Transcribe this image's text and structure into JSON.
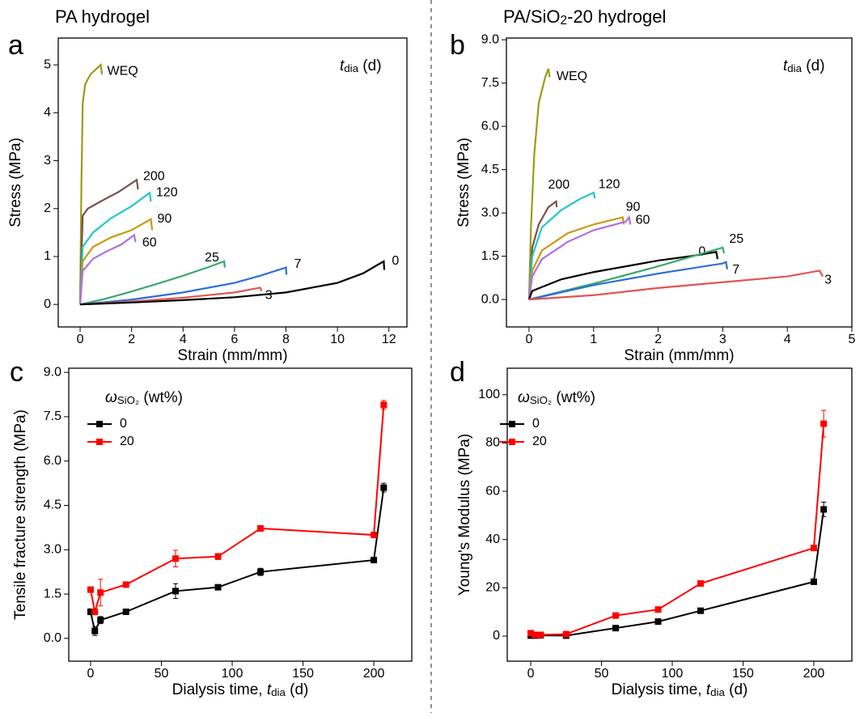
{
  "chart_data": [
    {
      "type": "line",
      "panel_label": "a",
      "title": [
        {
          "text": "PA hydrogel"
        }
      ],
      "legend_title": [
        {
          "text": "t",
          "style": "italic"
        },
        {
          "text": "dia",
          "style": "sub"
        },
        {
          "text": " (d)"
        }
      ],
      "x_label": [
        {
          "text": "Strain (mm/mm)"
        }
      ],
      "y_label": [
        {
          "text": "Stress (MPa)"
        }
      ],
      "xlim": [
        -0.85,
        12.7
      ],
      "ylim": [
        -0.47,
        5.56
      ],
      "xticks": [
        0,
        2,
        4,
        6,
        8,
        10,
        12
      ],
      "yticks": [
        0,
        1,
        2,
        3,
        4,
        5
      ],
      "series": [
        {
          "name": "WEQ",
          "color": "#9b9b19",
          "x": [
            0,
            0.05,
            0.1,
            0.2,
            0.4,
            0.6,
            0.8,
            0.85
          ],
          "values": [
            0,
            2.5,
            4.2,
            4.6,
            4.8,
            4.9,
            5.0,
            4.8
          ]
        },
        {
          "name": "200",
          "color": "#7a4f4f",
          "x": [
            0,
            0.1,
            0.3,
            0.8,
            1.5,
            2.2,
            2.25
          ],
          "values": [
            0,
            1.85,
            2.0,
            2.15,
            2.35,
            2.6,
            2.4
          ]
        },
        {
          "name": "120",
          "color": "#20c8c8",
          "x": [
            0,
            0.1,
            0.5,
            1.2,
            2.0,
            2.7,
            2.75
          ],
          "values": [
            0,
            1.2,
            1.5,
            1.8,
            2.05,
            2.33,
            2.15
          ]
        },
        {
          "name": "90",
          "color": "#c89a10",
          "x": [
            0,
            0.1,
            0.5,
            1.2,
            2.0,
            2.75,
            2.8
          ],
          "values": [
            0,
            0.9,
            1.2,
            1.4,
            1.55,
            1.78,
            1.55
          ]
        },
        {
          "name": "60",
          "color": "#b070e0",
          "x": [
            0,
            0.1,
            0.5,
            1.0,
            1.6,
            2.1,
            2.15
          ],
          "values": [
            0,
            0.7,
            0.95,
            1.1,
            1.25,
            1.45,
            1.3
          ]
        },
        {
          "name": "25",
          "color": "#3aa86a",
          "x": [
            0,
            1,
            2,
            3,
            4,
            5,
            5.6,
            5.62
          ],
          "values": [
            0,
            0.12,
            0.27,
            0.43,
            0.6,
            0.78,
            0.9,
            0.77
          ]
        },
        {
          "name": "7",
          "color": "#2a6ed8",
          "x": [
            0,
            2,
            4,
            6,
            7,
            8,
            8.02
          ],
          "values": [
            0,
            0.1,
            0.25,
            0.45,
            0.6,
            0.77,
            0.62
          ]
        },
        {
          "name": "3",
          "color": "#e05555",
          "x": [
            0,
            2,
            4,
            6,
            7,
            7.05
          ],
          "values": [
            0,
            0.06,
            0.14,
            0.25,
            0.35,
            0.28
          ]
        },
        {
          "name": "0",
          "color": "#000000",
          "x": [
            0,
            2,
            4,
            6,
            8,
            10,
            11,
            11.8,
            11.82
          ],
          "values": [
            0,
            0.04,
            0.09,
            0.15,
            0.25,
            0.45,
            0.65,
            0.9,
            0.72
          ]
        }
      ]
    },
    {
      "type": "line",
      "panel_label": "b",
      "title": [
        {
          "text": "PA/SiO"
        },
        {
          "text": "2",
          "style": "sub"
        },
        {
          "text": "-20 hydrogel"
        }
      ],
      "legend_title": [
        {
          "text": "t",
          "style": "italic"
        },
        {
          "text": "dia",
          "style": "sub"
        },
        {
          "text": " (d)"
        }
      ],
      "x_label": [
        {
          "text": "Strain (mm/mm)"
        }
      ],
      "y_label": [
        {
          "text": "Stress (MPa)"
        }
      ],
      "xlim": [
        -0.35,
        5.0
      ],
      "ylim": [
        -0.95,
        9.06
      ],
      "xticks": [
        0,
        1,
        2,
        3,
        4,
        5
      ],
      "yticks": [
        {
          "value": 0,
          "label": "0.0"
        },
        {
          "value": 1.5,
          "label": "1.5"
        },
        {
          "value": 3,
          "label": "3.0"
        },
        {
          "value": 4.5,
          "label": "4.5"
        },
        {
          "value": 6,
          "label": "6.0"
        },
        {
          "value": 7.5,
          "label": "7.5"
        },
        {
          "value": 9,
          "label": "9.0"
        }
      ],
      "series": [
        {
          "name": "WEQ",
          "color": "#9b9b19",
          "x": [
            0,
            0.03,
            0.08,
            0.15,
            0.25,
            0.3,
            0.32
          ],
          "values": [
            0,
            2.5,
            5.0,
            6.8,
            7.7,
            8.0,
            7.7
          ]
        },
        {
          "name": "200",
          "color": "#7a4f4f",
          "x": [
            0,
            0.05,
            0.15,
            0.3,
            0.42,
            0.43
          ],
          "values": [
            0,
            1.8,
            2.6,
            3.2,
            3.4,
            3.2
          ]
        },
        {
          "name": "120",
          "color": "#20c8c8",
          "x": [
            0,
            0.05,
            0.2,
            0.5,
            0.8,
            1.0,
            1.02
          ],
          "values": [
            0,
            1.5,
            2.5,
            3.1,
            3.5,
            3.7,
            3.5
          ]
        },
        {
          "name": "90",
          "color": "#c89a10",
          "x": [
            0,
            0.05,
            0.2,
            0.6,
            1.0,
            1.45,
            1.47
          ],
          "values": [
            0,
            1.0,
            1.7,
            2.3,
            2.6,
            2.85,
            2.6
          ]
        },
        {
          "name": "60",
          "color": "#b070e0",
          "x": [
            0,
            0.05,
            0.2,
            0.6,
            1.0,
            1.5,
            1.55,
            1.57
          ],
          "values": [
            0,
            0.8,
            1.4,
            2.0,
            2.4,
            2.7,
            2.85,
            2.6
          ]
        },
        {
          "name": "0",
          "color": "#000000",
          "x": [
            0,
            0.05,
            0.5,
            1.0,
            1.5,
            2.0,
            2.5,
            2.9,
            2.92
          ],
          "values": [
            0,
            0.3,
            0.7,
            0.95,
            1.15,
            1.35,
            1.5,
            1.65,
            1.4
          ]
        },
        {
          "name": "25",
          "color": "#3aa86a",
          "x": [
            0,
            1,
            2,
            3,
            3.02
          ],
          "values": [
            0,
            0.55,
            1.15,
            1.8,
            1.6
          ]
        },
        {
          "name": "7",
          "color": "#2a6ed8",
          "x": [
            0,
            1,
            2,
            3,
            3.05,
            3.07
          ],
          "values": [
            0,
            0.5,
            0.9,
            1.25,
            1.3,
            1.05
          ]
        },
        {
          "name": "3",
          "color": "#e05555",
          "x": [
            0,
            1,
            2,
            3,
            4,
            4.5,
            4.55
          ],
          "values": [
            0,
            0.15,
            0.4,
            0.6,
            0.8,
            1.0,
            0.8
          ]
        }
      ]
    },
    {
      "type": "errorline",
      "panel_label": "c",
      "legend_title": [
        {
          "text": "ω",
          "style": "italic"
        },
        {
          "text": "SiO₂",
          "style": "sub"
        },
        {
          "text": " (wt%)"
        }
      ],
      "x_label": [
        {
          "text": "Dialysis time, "
        },
        {
          "text": "t",
          "style": "italic"
        },
        {
          "text": "dia",
          "style": "sub"
        },
        {
          "text": " (d)"
        }
      ],
      "y_label": [
        {
          "text": "Tensile fracture strength (MPa)"
        }
      ],
      "xlim": [
        -15.4,
        226.8
      ],
      "ylim": [
        -0.77,
        9.14
      ],
      "xticks": [
        0,
        50,
        100,
        150,
        200
      ],
      "yticks": [
        {
          "value": 0,
          "label": "0.0"
        },
        {
          "value": 1.5,
          "label": "1.5"
        },
        {
          "value": 3,
          "label": "3.0"
        },
        {
          "value": 4.5,
          "label": "4.5"
        },
        {
          "value": 6,
          "label": "6.0"
        },
        {
          "value": 7.5,
          "label": "7.5"
        },
        {
          "value": 9,
          "label": "9.0"
        }
      ],
      "x": [
        0,
        3,
        7,
        25,
        60,
        90,
        120,
        200,
        207
      ],
      "series": [
        {
          "name": "0",
          "color": "#000000",
          "values": [
            0.9,
            0.25,
            0.62,
            0.9,
            1.6,
            1.73,
            2.25,
            2.65,
            5.1
          ],
          "errors": [
            0.1,
            0.15,
            0.12,
            0.05,
            0.25,
            0.08,
            0.12,
            0.05,
            0.15
          ]
        },
        {
          "name": "20",
          "color": "#ff0000",
          "values": [
            1.65,
            0.9,
            1.55,
            1.82,
            2.7,
            2.77,
            3.72,
            3.5,
            7.9
          ],
          "errors": [
            0.08,
            0.1,
            0.45,
            0.05,
            0.28,
            0.1,
            0.05,
            0.08,
            0.15
          ]
        }
      ]
    },
    {
      "type": "errorline",
      "panel_label": "d",
      "legend_title": [
        {
          "text": "ω",
          "style": "italic"
        },
        {
          "text": "SiO₂",
          "style": "sub"
        },
        {
          "text": " (wt%)"
        }
      ],
      "x_label": [
        {
          "text": "Dialysis time, "
        },
        {
          "text": "t",
          "style": "italic"
        },
        {
          "text": "dia",
          "style": "sub"
        },
        {
          "text": " (d)"
        }
      ],
      "y_label": [
        {
          "text": "Young's Modulus (MPa)"
        }
      ],
      "xlim": [
        -16.6,
        226.9
      ],
      "ylim": [
        -10.4,
        111
      ],
      "xticks": [
        0,
        50,
        100,
        150,
        200
      ],
      "yticks": [
        0,
        20,
        40,
        60,
        80,
        100
      ],
      "x": [
        0,
        3,
        7,
        25,
        60,
        90,
        120,
        200,
        207
      ],
      "series": [
        {
          "name": "0",
          "color": "#000000",
          "values": [
            0.2,
            0.2,
            0.3,
            0.2,
            3.3,
            6,
            10.5,
            22.5,
            52.5
          ],
          "errors": [
            0.2,
            0.2,
            0.3,
            0.2,
            0.5,
            0.5,
            0.5,
            0.5,
            3
          ]
        },
        {
          "name": "20",
          "color": "#ff0000",
          "values": [
            1.2,
            0.5,
            0.5,
            0.8,
            8.5,
            11,
            21.8,
            36.5,
            88
          ],
          "errors": [
            0.3,
            0.3,
            0.3,
            0.3,
            0.5,
            0.5,
            0.5,
            0.5,
            5.5
          ]
        }
      ]
    }
  ]
}
